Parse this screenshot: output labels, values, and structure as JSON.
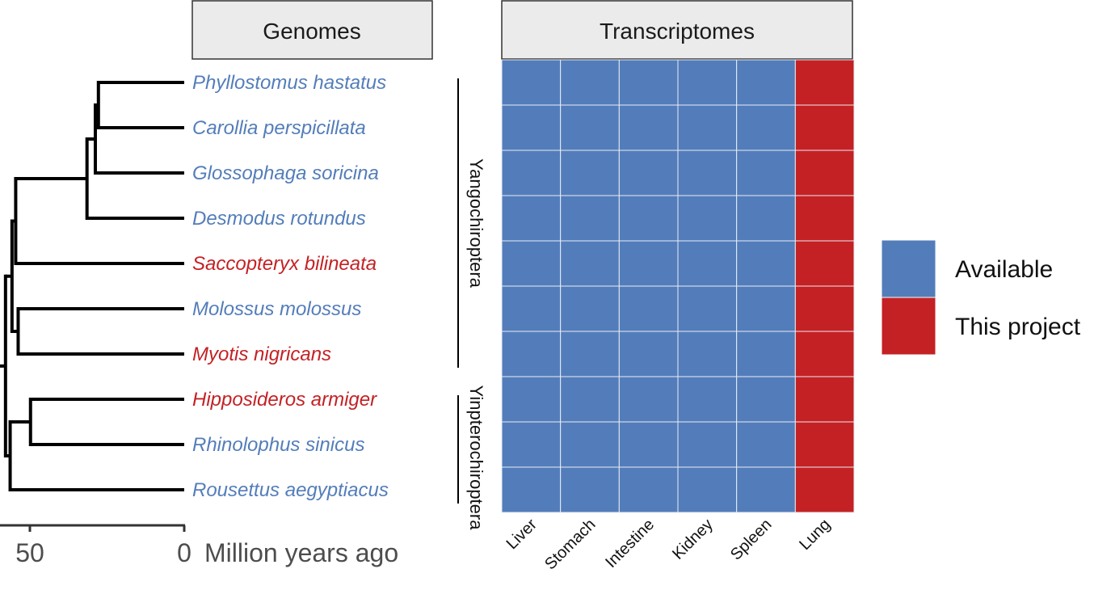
{
  "colors": {
    "available": "#537dba",
    "this_project": "#c42124",
    "branch": "#000000",
    "axis_text": "#4d4d4d",
    "header_fill": "#ebebeb"
  },
  "chart_data": [
    {
      "type": "tree",
      "panel_title": "Genomes",
      "xlabel": "Million years ago",
      "x_ticks": [
        50,
        0
      ],
      "x_reversed": true,
      "tree": {
        "age": 57.9,
        "children": [
          {
            "age": 55.8,
            "children": [
              {
                "age": 54.6,
                "children": [
                  {
                    "age": 31.5,
                    "children": [
                      {
                        "age": 28.8,
                        "children": [
                          {
                            "age": 27.8,
                            "children": [
                              {
                                "leaf": "Phyllostomus hastatus",
                                "group": "Available"
                              },
                              {
                                "leaf": "Carollia perspicillata",
                                "group": "Available"
                              }
                            ]
                          },
                          {
                            "leaf": "Glossophaga soricina",
                            "group": "Available"
                          }
                        ]
                      },
                      {
                        "leaf": "Desmodus rotundus",
                        "group": "Available"
                      }
                    ]
                  },
                  {
                    "leaf": "Saccopteryx bilineata",
                    "group": "This project"
                  }
                ]
              },
              {
                "age": 53.8,
                "children": [
                  {
                    "leaf": "Molossus molossus",
                    "group": "Available"
                  },
                  {
                    "leaf": "Myotis nigricans",
                    "group": "This project"
                  }
                ]
              }
            ]
          },
          {
            "age": 56.4,
            "children": [
              {
                "age": 49.8,
                "children": [
                  {
                    "leaf": "Hipposideros armiger",
                    "group": "This project"
                  },
                  {
                    "leaf": "Rhinolophus sinicus",
                    "group": "Available"
                  }
                ]
              },
              {
                "leaf": "Rousettus aegyptiacus",
                "group": "Available"
              }
            ]
          }
        ]
      },
      "clades": [
        {
          "name": "Yangochiroptera",
          "from": "Phyllostomus hastatus",
          "to": "Myotis nigricans"
        },
        {
          "name": "Yinpterochiroptera",
          "from": "Hipposideros armiger",
          "to": "Rousettus aegyptiacus"
        }
      ]
    },
    {
      "type": "heatmap",
      "panel_title": "Transcriptomes",
      "columns": [
        "Liver",
        "Stomach",
        "Intestine",
        "Kidney",
        "Spleen",
        "Lung"
      ],
      "rows": [
        "Phyllostomus hastatus",
        "Carollia perspicillata",
        "Glossophaga soricina",
        "Desmodus rotundus",
        "Saccopteryx bilineata",
        "Molossus molossus",
        "Myotis nigricans",
        "Hipposideros armiger",
        "Rhinolophus sinicus",
        "Rousettus aegyptiacus"
      ],
      "values": [
        [
          "Available",
          "Available",
          "Available",
          "Available",
          "Available",
          "This project"
        ],
        [
          "Available",
          "Available",
          "Available",
          "Available",
          "Available",
          "This project"
        ],
        [
          "Available",
          "Available",
          "Available",
          "Available",
          "Available",
          "This project"
        ],
        [
          "Available",
          "Available",
          "Available",
          "Available",
          "Available",
          "This project"
        ],
        [
          "Available",
          "Available",
          "Available",
          "Available",
          "Available",
          "This project"
        ],
        [
          "Available",
          "Available",
          "Available",
          "Available",
          "Available",
          "This project"
        ],
        [
          "Available",
          "Available",
          "Available",
          "Available",
          "Available",
          "This project"
        ],
        [
          "Available",
          "Available",
          "Available",
          "Available",
          "Available",
          "This project"
        ],
        [
          "Available",
          "Available",
          "Available",
          "Available",
          "Available",
          "This project"
        ],
        [
          "Available",
          "Available",
          "Available",
          "Available",
          "Available",
          "This project"
        ]
      ],
      "legend": {
        "position": "right",
        "entries": [
          "Available",
          "This project"
        ]
      }
    }
  ]
}
